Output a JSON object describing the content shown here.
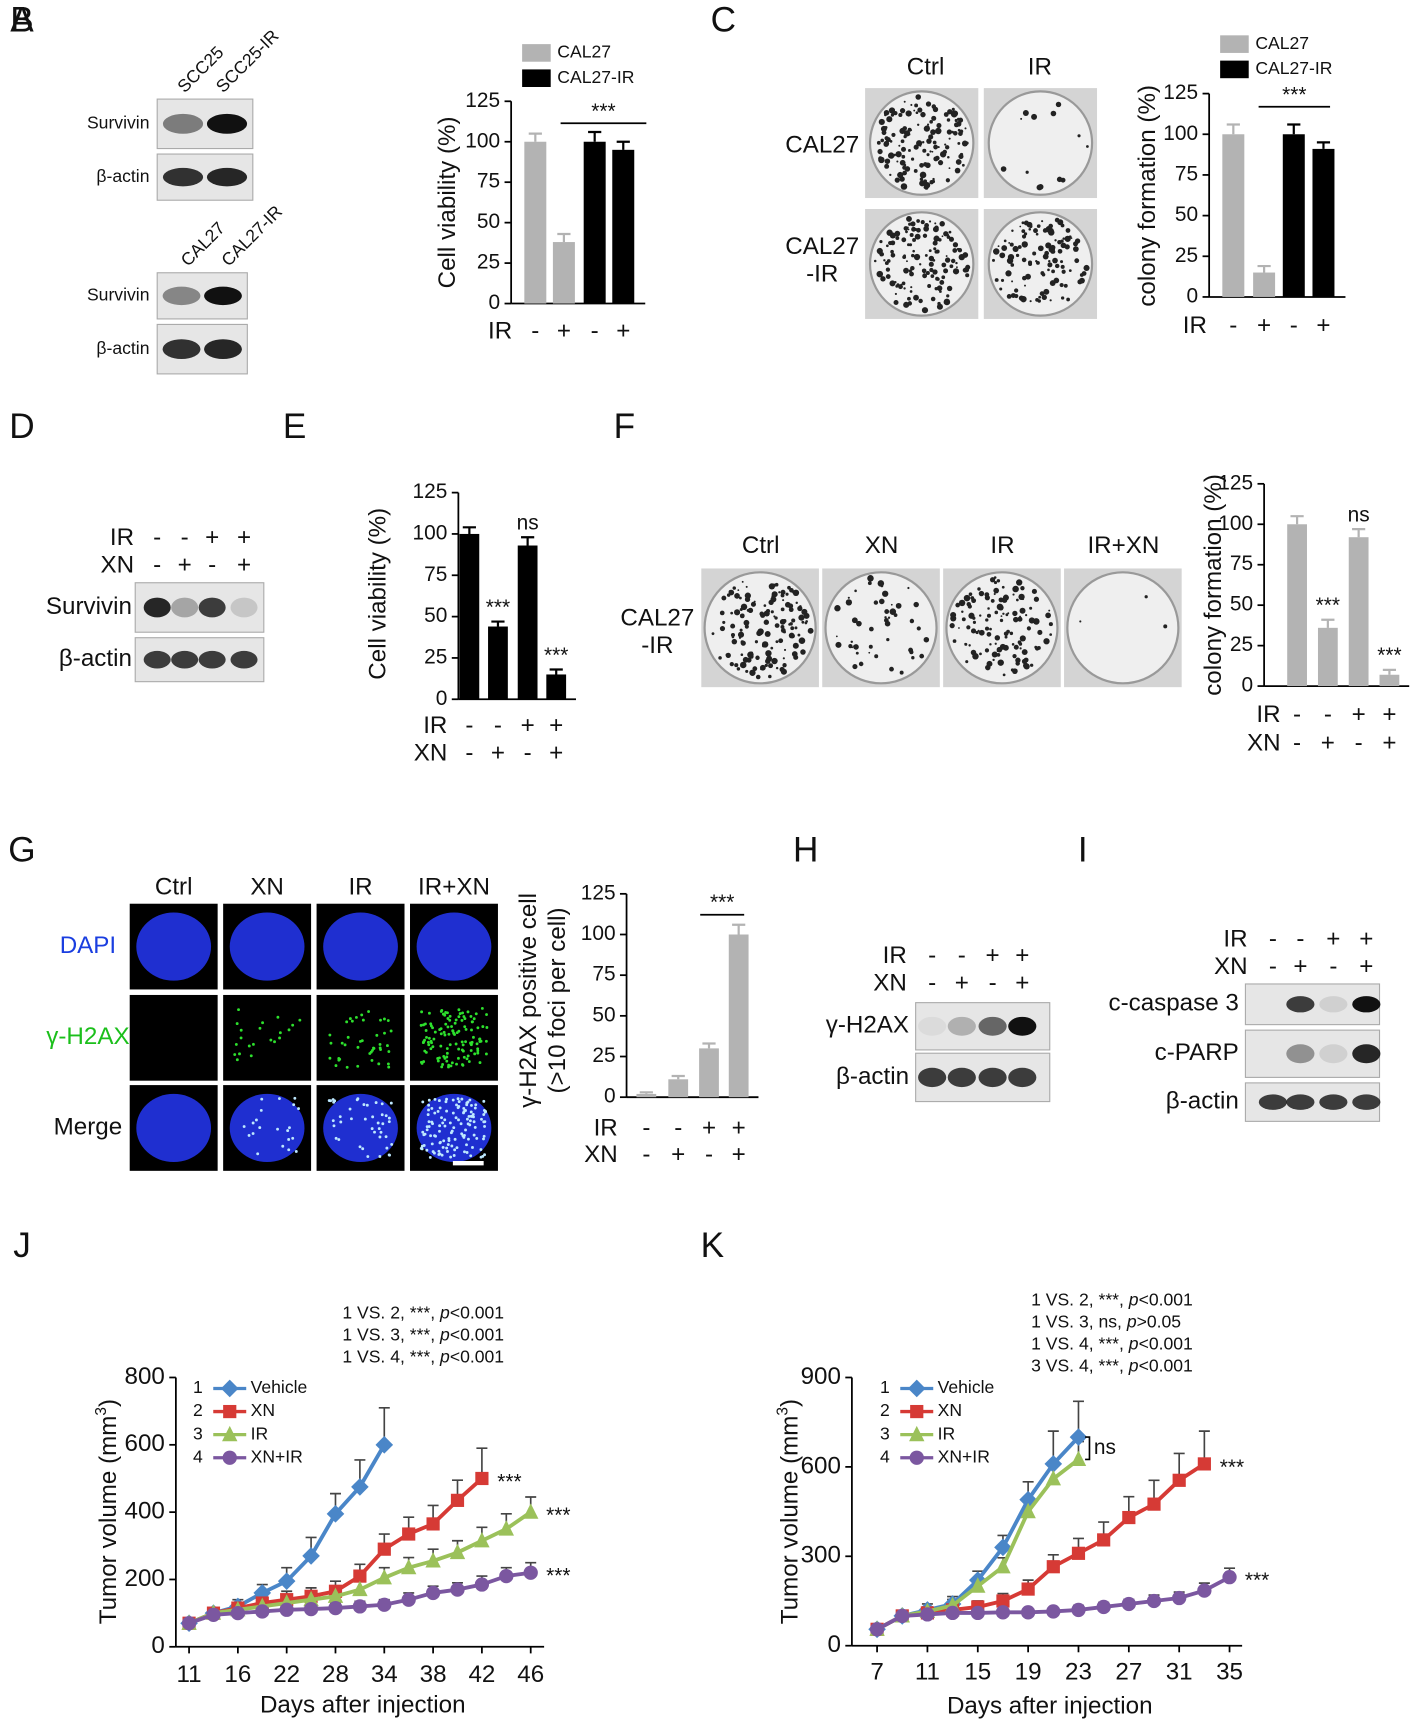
{
  "chart_data": [
    {
      "panel": "B",
      "type": "bar",
      "y_label": "Cell viability (%)",
      "ylim": [
        0,
        125
      ],
      "yticks": [
        0,
        25,
        50,
        75,
        100,
        125
      ],
      "categories": [
        null,
        null,
        null,
        null
      ],
      "series": [
        {
          "name": "CAL27",
          "color": "#b3b3b3",
          "values": [
            100,
            38,
            null,
            null
          ],
          "errors": [
            5,
            5,
            null,
            null
          ]
        },
        {
          "name": "CAL27-IR",
          "color": "#000000",
          "values": [
            null,
            null,
            100,
            95
          ],
          "errors": [
            null,
            null,
            6,
            5
          ]
        }
      ],
      "conditions": [
        {
          "label": "IR",
          "values": [
            "-",
            "+",
            "-",
            "+"
          ]
        }
      ],
      "bracket_label": "***"
    },
    {
      "panel": "C",
      "type": "bar",
      "y_label": "colony formation (%)",
      "ylim": [
        0,
        125
      ],
      "yticks": [
        0,
        25,
        50,
        75,
        100,
        125
      ],
      "categories": [
        null,
        null,
        null,
        null
      ],
      "series": [
        {
          "name": "CAL27",
          "color": "#b3b3b3",
          "values": [
            100,
            15,
            null,
            null
          ],
          "errors": [
            6,
            4,
            null,
            null
          ]
        },
        {
          "name": "CAL27-IR",
          "color": "#000000",
          "values": [
            null,
            null,
            100,
            91
          ],
          "errors": [
            null,
            null,
            6,
            4
          ]
        }
      ],
      "conditions": [
        {
          "label": "IR",
          "values": [
            "-",
            "+",
            "-",
            "+"
          ]
        }
      ],
      "bracket_label": "***"
    },
    {
      "panel": "E",
      "type": "bar",
      "y_label": "Cell viability (%)",
      "ylim": [
        0,
        125
      ],
      "yticks": [
        0,
        25,
        50,
        75,
        100,
        125
      ],
      "categories": [
        null,
        null,
        null,
        null
      ],
      "color": "#000000",
      "values": [
        100,
        44,
        93,
        15
      ],
      "errors": [
        4,
        3,
        5,
        3
      ],
      "bar_labels": [
        null,
        "***",
        "ns",
        "***"
      ],
      "conditions": [
        {
          "label": "IR",
          "values": [
            "-",
            "-",
            "+",
            "+"
          ]
        },
        {
          "label": "XN",
          "values": [
            "-",
            "+",
            "-",
            "+"
          ]
        }
      ]
    },
    {
      "panel": "F",
      "type": "bar",
      "y_label": "colony formation (%)",
      "ylim": [
        0,
        125
      ],
      "yticks": [
        0,
        25,
        50,
        75,
        100,
        125
      ],
      "categories": [
        null,
        null,
        null,
        null
      ],
      "color": "#b3b3b3",
      "values": [
        100,
        36,
        92,
        7
      ],
      "errors": [
        5,
        5,
        5,
        3
      ],
      "bar_labels": [
        null,
        "***",
        "ns",
        "***"
      ],
      "conditions": [
        {
          "label": "IR",
          "values": [
            "-",
            "-",
            "+",
            "+"
          ]
        },
        {
          "label": "XN",
          "values": [
            "-",
            "+",
            "-",
            "+"
          ]
        }
      ]
    },
    {
      "panel": "G",
      "type": "bar",
      "y_label": [
        "γ-H2AX positive cell",
        "(>10 foci per cell)"
      ],
      "ylim": [
        0,
        125
      ],
      "yticks": [
        0,
        25,
        50,
        75,
        100,
        125
      ],
      "categories": [
        null,
        null,
        null,
        null
      ],
      "color": "#b3b3b3",
      "values": [
        2,
        11,
        30,
        100
      ],
      "errors": [
        1,
        2,
        3,
        6
      ],
      "bracket_label": "***",
      "conditions": [
        {
          "label": "IR",
          "values": [
            "-",
            "-",
            "+",
            "+"
          ]
        },
        {
          "label": "XN",
          "values": [
            "-",
            "+",
            "-",
            "+"
          ]
        }
      ]
    },
    {
      "panel": "J",
      "type": "line",
      "x_label": "Days after injection",
      "y_label": [
        "Tumor volume (mm",
        "3",
        ")"
      ],
      "categories": [
        11,
        null,
        16,
        null,
        22,
        null,
        28,
        null,
        34,
        null,
        38,
        null,
        42,
        null,
        46
      ],
      "ylim": [
        0,
        800
      ],
      "yticks": [
        0,
        200,
        400,
        600,
        800
      ],
      "series": [
        {
          "number": "1",
          "name": "Vehicle",
          "color": "#4a86c8",
          "values": [
            70,
            100,
            120,
            160,
            195,
            270,
            395,
            475,
            600,
            null,
            null,
            null,
            null,
            null,
            null
          ],
          "errors": [
            10,
            15,
            20,
            25,
            40,
            55,
            60,
            80,
            110,
            null,
            null,
            null,
            null,
            null,
            null
          ]
        },
        {
          "number": "2",
          "name": "XN",
          "color": "#d63a35",
          "values": [
            70,
            100,
            115,
            130,
            140,
            150,
            165,
            210,
            290,
            335,
            365,
            435,
            500,
            null,
            null
          ],
          "errors": [
            10,
            15,
            15,
            20,
            25,
            25,
            30,
            35,
            45,
            50,
            55,
            60,
            90,
            null,
            null
          ],
          "end_label": "***"
        },
        {
          "number": "3",
          "name": "IR",
          "color": "#9bc15a",
          "values": [
            70,
            100,
            110,
            120,
            130,
            140,
            150,
            170,
            205,
            235,
            255,
            280,
            315,
            350,
            400
          ],
          "errors": [
            10,
            15,
            15,
            15,
            20,
            20,
            25,
            25,
            30,
            30,
            35,
            35,
            40,
            45,
            45
          ],
          "end_label": "***"
        },
        {
          "number": "4",
          "name": "XN+IR",
          "color": "#7b57a0",
          "values": [
            70,
            95,
            100,
            105,
            110,
            112,
            115,
            120,
            125,
            140,
            160,
            170,
            185,
            210,
            220
          ],
          "errors": [
            10,
            10,
            10,
            10,
            10,
            15,
            15,
            15,
            15,
            20,
            20,
            20,
            25,
            25,
            30
          ],
          "end_label": "***"
        }
      ],
      "stats": [
        [
          "1 VS. 2, ***, ",
          "p",
          "<0.001"
        ],
        [
          "1 VS. 3, ***, ",
          "p",
          "<0.001"
        ],
        [
          "1 VS. 4, ***, ",
          "p",
          "<0.001"
        ]
      ]
    },
    {
      "panel": "K",
      "type": "line",
      "x_label": "Days after injection",
      "y_label": [
        "Tumor volume (mm",
        "3",
        ")"
      ],
      "x": [
        7,
        9,
        11,
        13,
        15,
        17,
        19,
        21,
        23,
        25,
        27,
        29,
        31,
        33,
        35
      ],
      "xlim": [
        5,
        36
      ],
      "xticks": [
        7,
        11,
        15,
        19,
        23,
        27,
        31,
        35
      ],
      "ylim": [
        0,
        900
      ],
      "yticks": [
        0,
        300,
        600,
        900
      ],
      "series": [
        {
          "number": "1",
          "name": "Vehicle",
          "color": "#4a86c8",
          "values": [
            55,
            100,
            120,
            140,
            220,
            330,
            490,
            610,
            700,
            null,
            null,
            null,
            null,
            null,
            null
          ],
          "errors": [
            10,
            15,
            20,
            25,
            30,
            40,
            60,
            110,
            120,
            null,
            null,
            null,
            null,
            null,
            null
          ]
        },
        {
          "number": "2",
          "name": "XN",
          "color": "#d63a35",
          "values": [
            55,
            100,
            110,
            120,
            130,
            150,
            190,
            265,
            310,
            355,
            430,
            475,
            555,
            610,
            null
          ],
          "errors": [
            10,
            15,
            15,
            20,
            20,
            25,
            30,
            40,
            50,
            60,
            70,
            80,
            90,
            110,
            null
          ],
          "end_label": "***"
        },
        {
          "number": "3",
          "name": "IR",
          "color": "#9bc15a",
          "values": [
            55,
            100,
            115,
            135,
            200,
            265,
            450,
            560,
            625,
            null,
            null,
            null,
            null,
            null,
            null
          ],
          "errors": [
            10,
            15,
            15,
            20,
            25,
            30,
            40,
            50,
            60,
            null,
            null,
            null,
            null,
            null,
            null
          ]
        },
        {
          "number": "4",
          "name": "XN+IR",
          "color": "#7b57a0",
          "values": [
            55,
            100,
            105,
            110,
            110,
            112,
            112,
            115,
            120,
            130,
            140,
            150,
            160,
            185,
            230
          ],
          "errors": [
            10,
            10,
            10,
            10,
            10,
            10,
            10,
            10,
            15,
            15,
            15,
            20,
            20,
            25,
            30
          ],
          "end_label": "***"
        }
      ],
      "bracket_label": "ns",
      "stats": [
        [
          "1 VS. 2, ***, ",
          "p",
          "<0.001"
        ],
        [
          "1 VS. 3, ns, ",
          "p",
          ">0.05"
        ],
        [
          "1 VS. 4, ***, ",
          "p",
          "<0.001"
        ],
        [
          "3 VS. 4, ***, ",
          "p",
          "<0.001"
        ]
      ]
    }
  ],
  "figures": [
    {
      "panel": "A",
      "type": "blot",
      "groups": [
        {
          "lanes": [
            "SCC25",
            "SCC25-IR"
          ],
          "rows": [
            "Survivin",
            "β-actin"
          ]
        },
        {
          "lanes": [
            "CAL27",
            "CAL27-IR"
          ],
          "rows": [
            "Survivin",
            "β-actin"
          ]
        }
      ]
    },
    {
      "type": "plates",
      "columns": [
        "Ctrl",
        "IR"
      ],
      "rows": [
        [
          "CAL27"
        ],
        [
          "CAL27",
          "-IR"
        ]
      ]
    },
    {
      "panel": "D",
      "type": "blot",
      "conditions": [
        {
          "label": "IR",
          "values": [
            "-",
            "-",
            "+",
            "+"
          ]
        },
        {
          "label": "XN",
          "values": [
            "-",
            "+",
            "-",
            "+"
          ]
        }
      ],
      "rows": [
        "Survivin",
        "β-actin"
      ]
    },
    {
      "type": "plates",
      "columns": [
        "Ctrl",
        "XN",
        "IR",
        "IR+XN"
      ],
      "rows": [
        [
          "CAL27",
          "-IR"
        ]
      ]
    },
    {
      "type": "micrographs",
      "columns": [
        "Ctrl",
        "XN",
        "IR",
        "IR+XN"
      ],
      "rows": [
        "DAPI",
        "γ-H2AX",
        "Merge"
      ]
    },
    {
      "panel": "H",
      "type": "blot",
      "conditions": [
        {
          "label": "IR",
          "values": [
            "-",
            "-",
            "+",
            "+"
          ]
        },
        {
          "label": "XN",
          "values": [
            "-",
            "+",
            "-",
            "+"
          ]
        }
      ],
      "rows": [
        "γ-H2AX",
        "β-actin"
      ]
    },
    {
      "panel": "I",
      "type": "blot",
      "conditions": [
        {
          "label": "IR",
          "values": [
            "-",
            "-",
            "+",
            "+"
          ]
        },
        {
          "label": "XN",
          "values": [
            "-",
            "+",
            "-",
            "+"
          ]
        }
      ],
      "rows": [
        "c-caspase 3",
        "c-PARP",
        "β-actin"
      ]
    }
  ]
}
